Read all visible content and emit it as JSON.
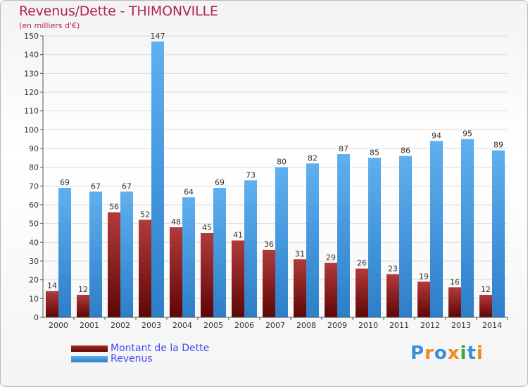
{
  "chart_data": {
    "type": "bar",
    "title": "Revenus/Dette - THIMONVILLE",
    "subtitle": "(en milliers d'€)",
    "categories": [
      "2000",
      "2001",
      "2002",
      "2003",
      "2004",
      "2005",
      "2006",
      "2007",
      "2008",
      "2009",
      "2010",
      "2011",
      "2012",
      "2013",
      "2014"
    ],
    "series": [
      {
        "name": "Montant de la Dette",
        "color": "#7a1010",
        "values": [
          14,
          12,
          56,
          52,
          48,
          45,
          41,
          36,
          31,
          29,
          26,
          23,
          19,
          16,
          12
        ]
      },
      {
        "name": "Revenus",
        "color": "#4a9fe6",
        "values": [
          69,
          67,
          67,
          147,
          64,
          69,
          73,
          80,
          82,
          87,
          85,
          86,
          94,
          95,
          89
        ]
      }
    ],
    "ylim": [
      0,
      150
    ],
    "yticks": [
      0,
      10,
      20,
      30,
      40,
      50,
      60,
      70,
      80,
      90,
      100,
      110,
      120,
      130,
      140,
      150
    ],
    "grid": true,
    "legend": "bottom-left"
  },
  "logo": {
    "text": "Proxiti",
    "letters": [
      {
        "ch": "P",
        "color": "#3a8fd9"
      },
      {
        "ch": "r",
        "color": "#f08a1c"
      },
      {
        "ch": "o",
        "color": "#3a8fd9"
      },
      {
        "ch": "x",
        "color": "#f08a1c"
      },
      {
        "ch": "i",
        "color": "#3aa83a"
      },
      {
        "ch": "t",
        "color": "#3a8fd9"
      },
      {
        "ch": "i",
        "color": "#f08a1c"
      }
    ]
  }
}
